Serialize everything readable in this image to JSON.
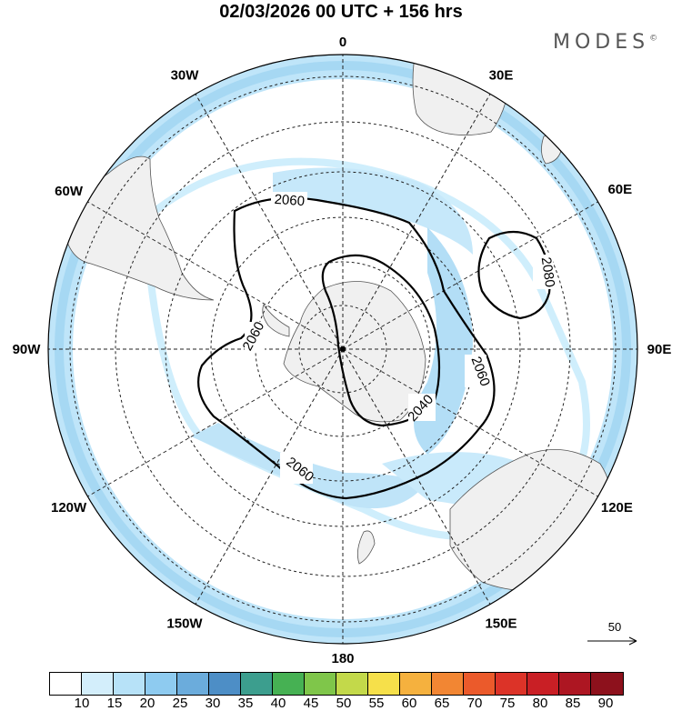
{
  "header": {
    "title": "02/03/2026  00 UTC  + 156 hrs",
    "brand": "MODES",
    "brand_mark": "©"
  },
  "map": {
    "projection": "south-polar-stereographic",
    "lon_labels": [
      "0",
      "30E",
      "60E",
      "90E",
      "120E",
      "150E",
      "180",
      "150W",
      "120W",
      "90W",
      "60W",
      "30W"
    ],
    "contours": [
      {
        "value": "2040",
        "label": "2040"
      },
      {
        "value": "2060",
        "label": "2060"
      },
      {
        "value": "2060",
        "label": "2060"
      },
      {
        "value": "2060",
        "label": "2060"
      },
      {
        "value": "2060",
        "label": "2060"
      },
      {
        "value": "2080",
        "label": "2080"
      }
    ],
    "reference_vector": {
      "value": "50"
    }
  },
  "colorbar": {
    "colors": [
      "#ffffff",
      "#d3eefb",
      "#b7e2f8",
      "#8ecbf0",
      "#6bacdc",
      "#4d8ec6",
      "#3c9e8e",
      "#46b153",
      "#7fc64a",
      "#c3d94a",
      "#f6e04a",
      "#f5b13e",
      "#f28633",
      "#eb5a2b",
      "#dc3328",
      "#c91f25",
      "#ad1622",
      "#8d111c"
    ],
    "ticks": [
      "10",
      "15",
      "20",
      "25",
      "30",
      "35",
      "40",
      "45",
      "50",
      "55",
      "60",
      "65",
      "70",
      "75",
      "80",
      "85",
      "90"
    ]
  }
}
